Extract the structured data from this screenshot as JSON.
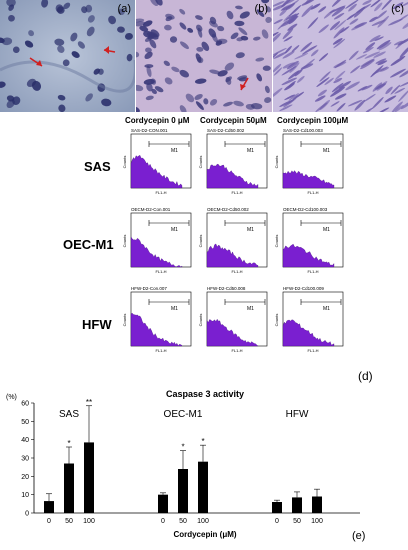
{
  "micrographs": [
    {
      "label": "(a)"
    },
    {
      "label": "(b)"
    },
    {
      "label": "(c)"
    }
  ],
  "flow": {
    "column_headers": [
      "Cordycepin 0 μM",
      "Cordycepin 50μM",
      "Cordycepin 100μM"
    ],
    "row_labels": [
      "SAS",
      "OEC-M1",
      "HFW"
    ],
    "file_names": [
      [
        "SAS-D2-CON.001",
        "SAS-D2-Cd50.002",
        "SAS-D2-Cd100.003"
      ],
      [
        "OECM-D2-Con.001",
        "OECM-D2-Cd50.002",
        "OECM-D2-Cd100.003"
      ],
      [
        "HFW-D2-Con.007",
        "HFW-D2-Cd50.008",
        "HFW-D2-Cd100.009"
      ]
    ],
    "gate_label": "M1",
    "y_axis_label": "Counts",
    "x_axis_label": "FL1-H",
    "panel_label": "(d)"
  },
  "chart_data": {
    "type": "bar",
    "title": "Caspase 3 activity",
    "ylabel": "(%)",
    "xlabel": "Cordycepin (μM)",
    "ylim": [
      0,
      60
    ],
    "yticks": [
      0,
      10,
      20,
      30,
      40,
      50,
      60
    ],
    "categories": [
      "0",
      "50",
      "100"
    ],
    "groups": [
      {
        "name": "SAS",
        "values": [
          6.5,
          27,
          38.5
        ],
        "errors": [
          4,
          9,
          20
        ],
        "marks": [
          "",
          "*",
          "**"
        ]
      },
      {
        "name": "OEC-M1",
        "values": [
          10,
          24,
          28
        ],
        "errors": [
          1,
          10,
          9
        ],
        "marks": [
          "",
          "*",
          "*"
        ]
      },
      {
        "name": "HFW",
        "values": [
          6,
          8.5,
          9
        ],
        "errors": [
          1,
          3,
          4
        ],
        "marks": [
          "",
          "",
          ""
        ]
      }
    ],
    "panel_label": "(e)"
  }
}
